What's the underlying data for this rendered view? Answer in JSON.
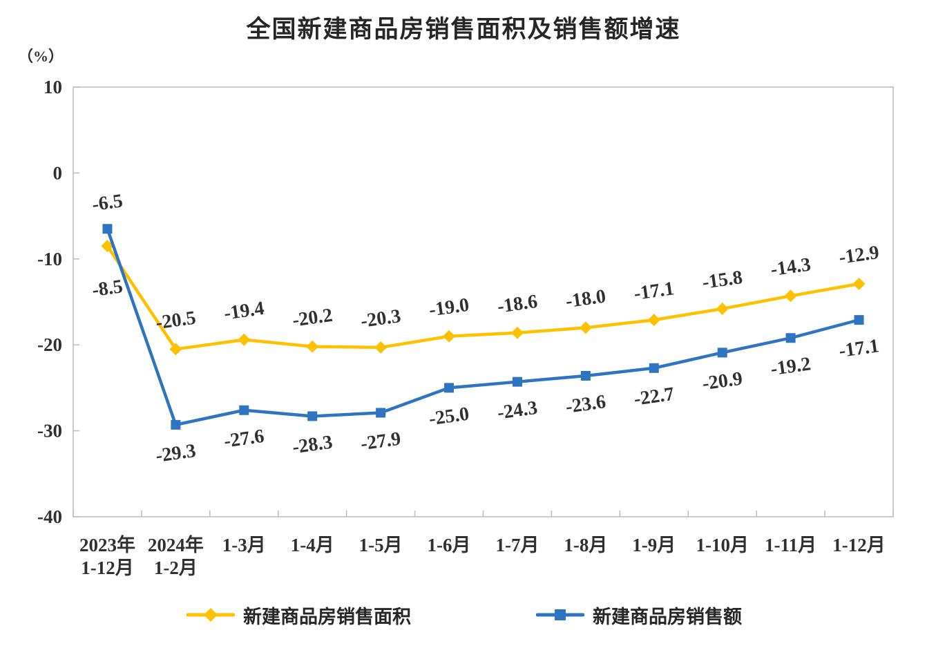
{
  "chart_data": {
    "type": "line",
    "title": "全国新建商品房销售面积及销售额增速",
    "unit_label": "（%）",
    "categories": [
      [
        "2023年",
        "1-12月"
      ],
      [
        "2024年",
        "1-2月"
      ],
      "1-3月",
      "1-4月",
      "1-5月",
      "1-6月",
      "1-7月",
      "1-8月",
      "1-9月",
      "1-10月",
      "1-11月",
      "1-12月"
    ],
    "y_ticks": [
      10,
      0,
      -10,
      -20,
      -30,
      -40
    ],
    "ylim": [
      -40,
      10
    ],
    "grid": false,
    "legend_position": "bottom",
    "series": [
      {
        "id": "sales-area",
        "name": "新建商品房销售面积",
        "color": "#FFC000",
        "marker": "diamond",
        "label_side": "above",
        "first_label_side": "below",
        "values": [
          -8.5,
          -20.5,
          -19.4,
          -20.2,
          -20.3,
          -19.0,
          -18.6,
          -18.0,
          -17.1,
          -15.8,
          -14.3,
          -12.9
        ]
      },
      {
        "id": "sales-amount",
        "name": "新建商品房销售额",
        "color": "#2E74C1",
        "marker": "square",
        "label_side": "below",
        "first_label_side": "above",
        "values": [
          -6.5,
          -29.3,
          -27.6,
          -28.3,
          -27.9,
          -25.0,
          -24.3,
          -23.6,
          -22.7,
          -20.9,
          -19.2,
          -17.1
        ]
      }
    ],
    "colors": {
      "axis_line": "#BFBFBF",
      "label_text": "#303030",
      "title_text": "#262626"
    }
  }
}
